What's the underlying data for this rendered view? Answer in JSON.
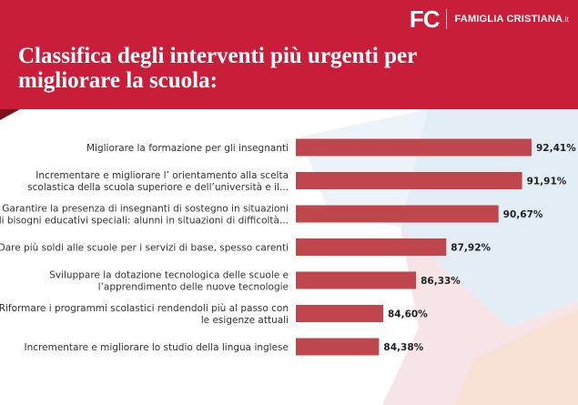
{
  "header": {
    "title_line1": "Classifica degli interventi più urgenti per",
    "title_line2": "migliorare la scuola:",
    "brand_logo": "FC",
    "brand_name": "FAMIGLIA CRISTIANA",
    "brand_tld": ".it"
  },
  "colors": {
    "header_bg": "#c81e3a",
    "bar": "#c0464e"
  },
  "chart_data": {
    "type": "bar",
    "orientation": "horizontal",
    "title": "Classifica degli interventi più urgenti per migliorare la scuola:",
    "xlim": [
      0,
      100
    ],
    "grid": false,
    "categories": [
      [
        "Migliorare la formazione per gli insegnanti"
      ],
      [
        "Incrementare e migliorare l’ orientamento alla scelta",
        "scolastica della scuola superiore e dell’università e il..."
      ],
      [
        "Garantire la presenza di insegnanti di sostegno in situazioni",
        "di bisogni educativi speciali: alunni in situazioni di difficoltà..."
      ],
      [
        "Dare più soldi alle scuole per i servizi di base, spesso carenti"
      ],
      [
        "Sviluppare la dotazione tecnologica delle scuole e",
        "l’apprendimento delle nuove tecnologie"
      ],
      [
        "Riformare i programmi scolastici rendendoli più al passo con",
        "le esigenze attuali"
      ],
      [
        "Incrementare e migliorare lo studio della lingua inglese"
      ]
    ],
    "values": [
      92.41,
      91.91,
      90.67,
      87.92,
      86.33,
      84.6,
      84.38
    ],
    "value_labels": [
      "92,41%",
      "91,91%",
      "90,67%",
      "87,92%",
      "86,33%",
      "84,60%",
      "84,38%"
    ]
  }
}
